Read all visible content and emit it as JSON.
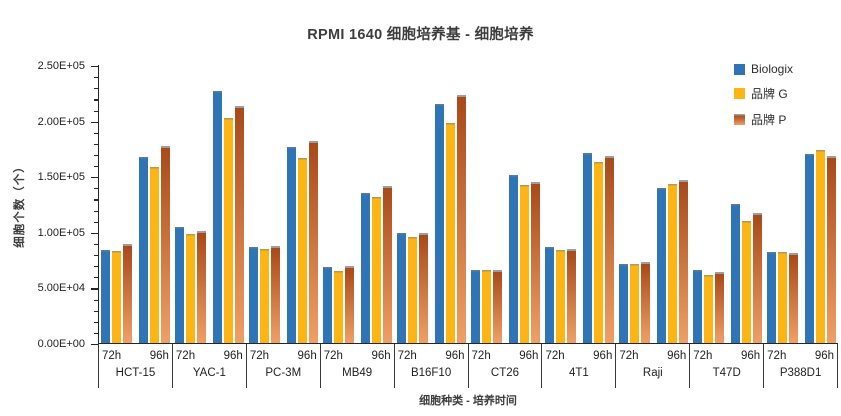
{
  "chart_data": {
    "type": "bar",
    "title": "RPMI 1640 细胞培养基 - 细胞培养",
    "xlabel": "细胞种类 - 培养时间",
    "ylabel": "细胞个数（个）",
    "ylim": [
      0,
      250000
    ],
    "ymajor_step": 50000,
    "yminor_step": 10000,
    "yticks": [
      {
        "value": 0,
        "label": "0.00E+00"
      },
      {
        "value": 50000,
        "label": "5.00E+04"
      },
      {
        "value": 100000,
        "label": "1.00E+05"
      },
      {
        "value": 150000,
        "label": "1.50E+05"
      },
      {
        "value": 200000,
        "label": "2.00E+05"
      },
      {
        "value": 250000,
        "label": "2.50E+05"
      }
    ],
    "grid": false,
    "legend_position": "top-right",
    "subgroups": [
      "72h",
      "96h"
    ],
    "series": [
      {
        "name": "Biologix",
        "color": "#2f74b5"
      },
      {
        "name": "品牌 G",
        "color": "#fcb515"
      },
      {
        "name": "品牌 P",
        "gradient": true,
        "color_top": "#a84a1a",
        "color_bottom": "#efa066"
      }
    ],
    "categories": [
      {
        "name": "HCT-15",
        "values": [
          [
            84000,
            83000,
            89000
          ],
          [
            167000,
            158000,
            177000
          ]
        ]
      },
      {
        "name": "YAC-1",
        "values": [
          [
            104000,
            98000,
            101000
          ],
          [
            227000,
            202000,
            213000
          ]
        ]
      },
      {
        "name": "PC-3M",
        "values": [
          [
            86000,
            85000,
            87000
          ],
          [
            176000,
            166000,
            182000
          ]
        ]
      },
      {
        "name": "MB49",
        "values": [
          [
            68000,
            65000,
            69000
          ],
          [
            135000,
            131000,
            141000
          ]
        ]
      },
      {
        "name": "B16F10",
        "values": [
          [
            99000,
            95000,
            99000
          ],
          [
            215000,
            198000,
            223000
          ]
        ]
      },
      {
        "name": "CT26",
        "values": [
          [
            66000,
            66000,
            66000
          ],
          [
            151000,
            142000,
            145000
          ]
        ]
      },
      {
        "name": "4T1",
        "values": [
          [
            86000,
            84000,
            85000
          ],
          [
            171000,
            163000,
            168000
          ]
        ]
      },
      {
        "name": "Raji",
        "values": [
          [
            71000,
            71000,
            73000
          ],
          [
            139000,
            143000,
            147000
          ]
        ]
      },
      {
        "name": "T47D",
        "values": [
          [
            66000,
            61000,
            64000
          ],
          [
            125000,
            110000,
            117000
          ]
        ]
      },
      {
        "name": "P388D1",
        "values": [
          [
            82000,
            82000,
            81000
          ],
          [
            170000,
            174000,
            168000
          ]
        ]
      }
    ]
  }
}
